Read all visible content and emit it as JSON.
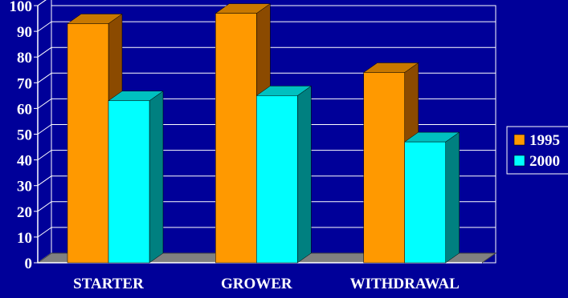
{
  "chart_data": {
    "type": "bar",
    "title": "",
    "xlabel": "",
    "ylabel": "",
    "categories": [
      "STARTER",
      "GROWER",
      "WITHDRAWAL"
    ],
    "series": [
      {
        "name": "1995",
        "values": [
          93,
          97,
          74
        ],
        "color": "#ff9900",
        "side_color": "#8b4a00",
        "top_color": "#c87800"
      },
      {
        "name": "2000",
        "values": [
          63,
          65,
          47
        ],
        "color": "#00ffff",
        "side_color": "#008080",
        "top_color": "#00c0c0"
      }
    ],
    "ylim": [
      0,
      100
    ],
    "yticks": [
      0,
      10,
      20,
      30,
      40,
      50,
      60,
      70,
      80,
      90,
      100
    ],
    "grid": true,
    "legend_position": "right",
    "background_color": "#000099",
    "floor_color": "#808080"
  }
}
